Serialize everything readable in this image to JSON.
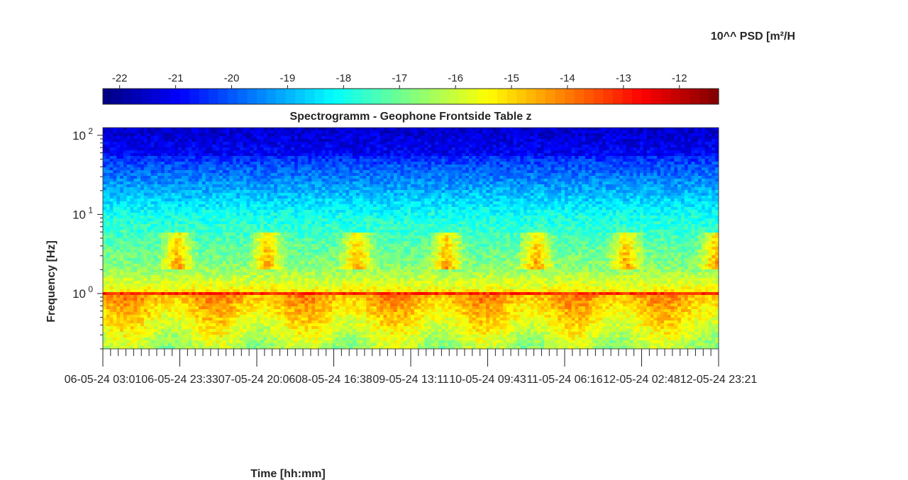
{
  "colorbar": {
    "title": "10^^ PSD [m²/H",
    "ticks": [
      "-22",
      "-21",
      "-20",
      "-19",
      "-18",
      "-17",
      "-16",
      "-15",
      "-14",
      "-13",
      "-12"
    ],
    "range": [
      -22.3,
      -11.3
    ],
    "colormap": "jet"
  },
  "chart_data": {
    "type": "heatmap",
    "title": "Spectrogramm - Geophone Frontside Table z",
    "xlabel": "Time [hh:mm]",
    "ylabel": "Frequency [Hz]",
    "yscale": "log",
    "ylim": [
      0.2,
      125
    ],
    "xlim": [
      "06-05-24 03:01",
      "12-05-24 23:21"
    ],
    "xticklabels": [
      "06-05-24 03:01",
      "06-05-24 23:33",
      "07-05-24 20:06",
      "08-05-24 16:38",
      "09-05-24 13:11",
      "10-05-24 09:43",
      "11-05-24 06:16",
      "12-05-24 02:48",
      "12-05-24 23:21"
    ],
    "yticklabels": [
      "10^0",
      "10^1",
      "10^2"
    ],
    "yticks": [
      1,
      10,
      100
    ],
    "grid": false,
    "value_label": "10^^ PSD [m²/H",
    "features": {
      "high_frequency_level": -21.5,
      "mid_frequency_level": -18.0,
      "low_frequency_level": -12.5,
      "daily_activity_band_hz": [
        2,
        6
      ],
      "persistent_line_hz": 1.0
    }
  }
}
